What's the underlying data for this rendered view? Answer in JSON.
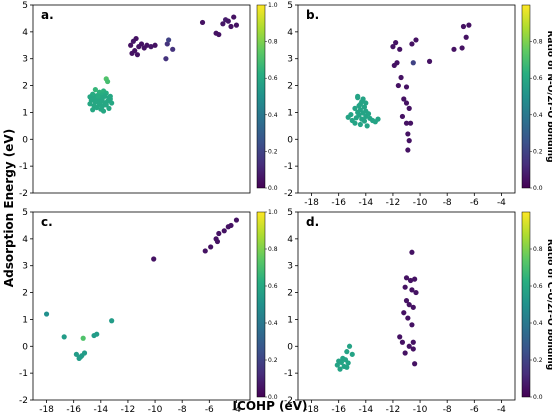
{
  "figure": {
    "ylabel": "Adsorption Energy (eV)",
    "xlabel": "ICOHP (eV)"
  },
  "chart_data": [
    {
      "type": "scatter",
      "panel_label": "a.",
      "xlim": [
        -19,
        -3
      ],
      "ylim": [
        -2,
        5
      ],
      "xticks": [],
      "yticks": [
        "-2",
        "-1",
        "0",
        "1",
        "2",
        "3",
        "4",
        "5"
      ],
      "colorbar": {
        "label": "",
        "ticks": [
          "0.0",
          "0.2",
          "0.4",
          "0.6",
          "0.8",
          "1.0"
        ],
        "cmap": "viridis",
        "range": [
          0,
          1
        ]
      },
      "points": [
        {
          "x": -13.6,
          "y": 2.25,
          "c": 0.72
        },
        {
          "x": -13.5,
          "y": 2.15,
          "c": 0.7
        },
        {
          "x": -14.4,
          "y": 1.85,
          "c": 0.66
        },
        {
          "x": -13.8,
          "y": 1.8,
          "c": 0.64
        },
        {
          "x": -14.1,
          "y": 1.75,
          "c": 0.64
        },
        {
          "x": -13.6,
          "y": 1.72,
          "c": 0.62
        },
        {
          "x": -14.6,
          "y": 1.68,
          "c": 0.62
        },
        {
          "x": -13.9,
          "y": 1.65,
          "c": 0.62
        },
        {
          "x": -14.3,
          "y": 1.62,
          "c": 0.6
        },
        {
          "x": -13.7,
          "y": 1.6,
          "c": 0.6
        },
        {
          "x": -14.8,
          "y": 1.58,
          "c": 0.6
        },
        {
          "x": -13.4,
          "y": 1.55,
          "c": 0.6
        },
        {
          "x": -14.0,
          "y": 1.55,
          "c": 0.6
        },
        {
          "x": -14.5,
          "y": 1.52,
          "c": 0.6
        },
        {
          "x": -13.3,
          "y": 1.5,
          "c": 0.6
        },
        {
          "x": -13.9,
          "y": 1.48,
          "c": 0.6
        },
        {
          "x": -14.2,
          "y": 1.45,
          "c": 0.6
        },
        {
          "x": -14.7,
          "y": 1.45,
          "c": 0.6
        },
        {
          "x": -13.5,
          "y": 1.42,
          "c": 0.6
        },
        {
          "x": -14.0,
          "y": 1.4,
          "c": 0.6
        },
        {
          "x": -14.4,
          "y": 1.38,
          "c": 0.6
        },
        {
          "x": -13.7,
          "y": 1.35,
          "c": 0.6
        },
        {
          "x": -14.8,
          "y": 1.32,
          "c": 0.6
        },
        {
          "x": -13.2,
          "y": 1.35,
          "c": 0.6
        },
        {
          "x": -14.1,
          "y": 1.3,
          "c": 0.6
        },
        {
          "x": -13.6,
          "y": 1.28,
          "c": 0.6
        },
        {
          "x": -14.5,
          "y": 1.25,
          "c": 0.6
        },
        {
          "x": -13.9,
          "y": 1.22,
          "c": 0.6
        },
        {
          "x": -14.3,
          "y": 1.18,
          "c": 0.6
        },
        {
          "x": -13.4,
          "y": 1.15,
          "c": 0.6
        },
        {
          "x": -14.0,
          "y": 1.12,
          "c": 0.6
        },
        {
          "x": -14.6,
          "y": 1.1,
          "c": 0.6
        },
        {
          "x": -13.8,
          "y": 1.05,
          "c": 0.6
        },
        {
          "x": -14.2,
          "y": 1.6,
          "c": 0.62
        },
        {
          "x": -13.3,
          "y": 1.6,
          "c": 0.6
        },
        {
          "x": -11.8,
          "y": 3.5,
          "c": 0.05
        },
        {
          "x": -11.6,
          "y": 3.65,
          "c": 0.06
        },
        {
          "x": -11.4,
          "y": 3.75,
          "c": 0.05
        },
        {
          "x": -11.2,
          "y": 3.45,
          "c": 0.05
        },
        {
          "x": -11.5,
          "y": 3.3,
          "c": 0.05
        },
        {
          "x": -11.0,
          "y": 3.55,
          "c": 0.05
        },
        {
          "x": -10.8,
          "y": 3.4,
          "c": 0.05
        },
        {
          "x": -10.6,
          "y": 3.5,
          "c": 0.05
        },
        {
          "x": -10.3,
          "y": 3.45,
          "c": 0.06
        },
        {
          "x": -10.0,
          "y": 3.5,
          "c": 0.05
        },
        {
          "x": -11.7,
          "y": 3.2,
          "c": 0.05
        },
        {
          "x": -11.3,
          "y": 3.15,
          "c": 0.05
        },
        {
          "x": -9.1,
          "y": 3.55,
          "c": 0.15
        },
        {
          "x": -9.0,
          "y": 3.7,
          "c": 0.2
        },
        {
          "x": -8.7,
          "y": 3.35,
          "c": 0.15
        },
        {
          "x": -9.2,
          "y": 3.0,
          "c": 0.15
        },
        {
          "x": -6.5,
          "y": 4.35,
          "c": 0.05
        },
        {
          "x": -5.5,
          "y": 3.95,
          "c": 0.05
        },
        {
          "x": -5.3,
          "y": 3.9,
          "c": 0.05
        },
        {
          "x": -5.0,
          "y": 4.3,
          "c": 0.06
        },
        {
          "x": -4.8,
          "y": 4.45,
          "c": 0.08
        },
        {
          "x": -4.6,
          "y": 4.4,
          "c": 0.06
        },
        {
          "x": -4.4,
          "y": 4.2,
          "c": 0.05
        },
        {
          "x": -4.2,
          "y": 4.55,
          "c": 0.05
        },
        {
          "x": -4.0,
          "y": 4.25,
          "c": 0.05
        }
      ]
    },
    {
      "type": "scatter",
      "panel_label": "b.",
      "xlim": [
        -19,
        -3
      ],
      "ylim": [
        -2,
        5
      ],
      "xticks": [
        "-18",
        "-16",
        "-14",
        "-12",
        "-10",
        "-8",
        "-6",
        "-4"
      ],
      "yticks": [
        "-2",
        "-1",
        "0",
        "1",
        "2",
        "3",
        "4",
        "5"
      ],
      "colorbar": {
        "label": "Ratio of N-O/Zr-O bonding",
        "ticks": [
          "0.0",
          "0.2",
          "0.4",
          "0.6",
          "0.8"
        ],
        "cmap": "viridis",
        "range": [
          0,
          1
        ]
      },
      "points": [
        {
          "x": -14.6,
          "y": 1.55,
          "c": 0.58
        },
        {
          "x": -14.3,
          "y": 1.4,
          "c": 0.58
        },
        {
          "x": -14.0,
          "y": 1.35,
          "c": 0.58
        },
        {
          "x": -14.5,
          "y": 1.25,
          "c": 0.58
        },
        {
          "x": -14.1,
          "y": 1.2,
          "c": 0.58
        },
        {
          "x": -14.8,
          "y": 1.15,
          "c": 0.58
        },
        {
          "x": -14.4,
          "y": 1.1,
          "c": 0.58
        },
        {
          "x": -14.0,
          "y": 1.05,
          "c": 0.58
        },
        {
          "x": -14.6,
          "y": 1.0,
          "c": 0.58
        },
        {
          "x": -14.2,
          "y": 0.98,
          "c": 0.58
        },
        {
          "x": -13.8,
          "y": 0.95,
          "c": 0.58
        },
        {
          "x": -15.1,
          "y": 0.92,
          "c": 0.58
        },
        {
          "x": -14.5,
          "y": 0.9,
          "c": 0.58
        },
        {
          "x": -14.0,
          "y": 0.85,
          "c": 0.58
        },
        {
          "x": -15.3,
          "y": 0.82,
          "c": 0.58
        },
        {
          "x": -14.7,
          "y": 0.8,
          "c": 0.58
        },
        {
          "x": -13.7,
          "y": 0.78,
          "c": 0.58
        },
        {
          "x": -14.3,
          "y": 0.75,
          "c": 0.58
        },
        {
          "x": -15.0,
          "y": 0.7,
          "c": 0.58
        },
        {
          "x": -14.1,
          "y": 0.68,
          "c": 0.58
        },
        {
          "x": -13.5,
          "y": 0.7,
          "c": 0.58
        },
        {
          "x": -14.8,
          "y": 0.6,
          "c": 0.58
        },
        {
          "x": -14.4,
          "y": 0.55,
          "c": 0.58
        },
        {
          "x": -13.9,
          "y": 0.5,
          "c": 0.58
        },
        {
          "x": -13.3,
          "y": 0.65,
          "c": 0.58
        },
        {
          "x": -13.1,
          "y": 0.75,
          "c": 0.58
        },
        {
          "x": -14.2,
          "y": 1.5,
          "c": 0.58
        },
        {
          "x": -14.4,
          "y": 1.3,
          "c": 0.58
        },
        {
          "x": -14.6,
          "y": 1.6,
          "c": 0.58
        },
        {
          "x": -12.0,
          "y": 3.45,
          "c": 0.05
        },
        {
          "x": -11.8,
          "y": 3.6,
          "c": 0.05
        },
        {
          "x": -11.5,
          "y": 3.35,
          "c": 0.05
        },
        {
          "x": -11.7,
          "y": 2.85,
          "c": 0.05
        },
        {
          "x": -11.9,
          "y": 2.75,
          "c": 0.05
        },
        {
          "x": -11.4,
          "y": 2.3,
          "c": 0.05
        },
        {
          "x": -11.6,
          "y": 2.0,
          "c": 0.05
        },
        {
          "x": -11.0,
          "y": 1.95,
          "c": 0.05
        },
        {
          "x": -11.2,
          "y": 1.5,
          "c": 0.05
        },
        {
          "x": -11.0,
          "y": 1.35,
          "c": 0.05
        },
        {
          "x": -10.8,
          "y": 1.15,
          "c": 0.05
        },
        {
          "x": -11.3,
          "y": 0.85,
          "c": 0.05
        },
        {
          "x": -11.0,
          "y": 0.6,
          "c": 0.05
        },
        {
          "x": -10.7,
          "y": 0.6,
          "c": 0.05
        },
        {
          "x": -10.9,
          "y": 0.2,
          "c": 0.05
        },
        {
          "x": -10.8,
          "y": -0.05,
          "c": 0.05
        },
        {
          "x": -10.9,
          "y": -0.4,
          "c": 0.05
        },
        {
          "x": -10.6,
          "y": 3.55,
          "c": 0.05
        },
        {
          "x": -10.3,
          "y": 3.7,
          "c": 0.05
        },
        {
          "x": -10.5,
          "y": 2.85,
          "c": 0.2
        },
        {
          "x": -9.3,
          "y": 2.9,
          "c": 0.05
        },
        {
          "x": -7.5,
          "y": 3.35,
          "c": 0.05
        },
        {
          "x": -6.9,
          "y": 3.4,
          "c": 0.05
        },
        {
          "x": -6.8,
          "y": 4.2,
          "c": 0.05
        },
        {
          "x": -6.6,
          "y": 3.8,
          "c": 0.05
        },
        {
          "x": -6.4,
          "y": 4.25,
          "c": 0.05
        }
      ]
    },
    {
      "type": "scatter",
      "panel_label": "c.",
      "xlim": [
        -19,
        -3
      ],
      "ylim": [
        -2,
        5
      ],
      "xticks": [
        "-18",
        "-16",
        "-14",
        "-12",
        "-10",
        "-8",
        "-6",
        "-4"
      ],
      "yticks": [
        "-2",
        "-1",
        "0",
        "1",
        "2",
        "3",
        "4",
        "5"
      ],
      "colorbar": {
        "label": "",
        "ticks": [
          "0.0",
          "0.2",
          "0.4",
          "0.6",
          "0.8",
          "1.0"
        ],
        "cmap": "viridis",
        "range": [
          0,
          1
        ]
      },
      "points": [
        {
          "x": -18.0,
          "y": 1.2,
          "c": 0.5
        },
        {
          "x": -16.7,
          "y": 0.35,
          "c": 0.55
        },
        {
          "x": -15.8,
          "y": -0.3,
          "c": 0.55
        },
        {
          "x": -15.6,
          "y": -0.45,
          "c": 0.55
        },
        {
          "x": -15.4,
          "y": -0.35,
          "c": 0.55
        },
        {
          "x": -15.2,
          "y": -0.25,
          "c": 0.55
        },
        {
          "x": -15.5,
          "y": -0.4,
          "c": 0.55
        },
        {
          "x": -15.3,
          "y": 0.3,
          "c": 0.72
        },
        {
          "x": -14.5,
          "y": 0.4,
          "c": 0.55
        },
        {
          "x": -14.3,
          "y": 0.45,
          "c": 0.55
        },
        {
          "x": -13.2,
          "y": 0.95,
          "c": 0.55
        },
        {
          "x": -10.1,
          "y": 3.25,
          "c": 0.05
        },
        {
          "x": -6.3,
          "y": 3.55,
          "c": 0.05
        },
        {
          "x": -5.9,
          "y": 3.7,
          "c": 0.05
        },
        {
          "x": -5.5,
          "y": 4.0,
          "c": 0.05
        },
        {
          "x": -5.3,
          "y": 4.2,
          "c": 0.05
        },
        {
          "x": -5.4,
          "y": 3.9,
          "c": 0.05
        },
        {
          "x": -4.9,
          "y": 4.3,
          "c": 0.05
        },
        {
          "x": -4.6,
          "y": 4.45,
          "c": 0.05
        },
        {
          "x": -4.4,
          "y": 4.5,
          "c": 0.05
        },
        {
          "x": -4.0,
          "y": 4.7,
          "c": 0.05
        }
      ]
    },
    {
      "type": "scatter",
      "panel_label": "d.",
      "xlim": [
        -19,
        -3
      ],
      "ylim": [
        -2,
        5
      ],
      "xticks": [
        "-18",
        "-16",
        "-14",
        "-12",
        "-10",
        "-8",
        "-6",
        "-4"
      ],
      "yticks": [
        "-2",
        "-1",
        "0",
        "1",
        "2",
        "3",
        "4",
        "5"
      ],
      "colorbar": {
        "label": "Ratio of C-O/Zr-O bonding",
        "ticks": [
          "0.0",
          "0.2",
          "0.4",
          "0.6",
          "0.8"
        ],
        "cmap": "viridis",
        "range": [
          0,
          1
        ]
      },
      "points": [
        {
          "x": -15.2,
          "y": 0.0,
          "c": 0.58
        },
        {
          "x": -15.4,
          "y": -0.2,
          "c": 0.58
        },
        {
          "x": -15.0,
          "y": -0.3,
          "c": 0.58
        },
        {
          "x": -15.7,
          "y": -0.45,
          "c": 0.58
        },
        {
          "x": -15.5,
          "y": -0.5,
          "c": 0.58
        },
        {
          "x": -16.0,
          "y": -0.55,
          "c": 0.58
        },
        {
          "x": -15.8,
          "y": -0.6,
          "c": 0.58
        },
        {
          "x": -15.3,
          "y": -0.62,
          "c": 0.58
        },
        {
          "x": -16.1,
          "y": -0.7,
          "c": 0.58
        },
        {
          "x": -15.6,
          "y": -0.75,
          "c": 0.58
        },
        {
          "x": -15.9,
          "y": -0.85,
          "c": 0.58
        },
        {
          "x": -15.4,
          "y": -0.78,
          "c": 0.58
        },
        {
          "x": -10.6,
          "y": 3.5,
          "c": 0.05
        },
        {
          "x": -11.0,
          "y": 2.55,
          "c": 0.05
        },
        {
          "x": -10.7,
          "y": 2.45,
          "c": 0.05
        },
        {
          "x": -10.4,
          "y": 2.5,
          "c": 0.05
        },
        {
          "x": -11.1,
          "y": 2.2,
          "c": 0.05
        },
        {
          "x": -10.6,
          "y": 2.1,
          "c": 0.05
        },
        {
          "x": -10.3,
          "y": 2.0,
          "c": 0.05
        },
        {
          "x": -11.0,
          "y": 1.7,
          "c": 0.05
        },
        {
          "x": -10.8,
          "y": 1.55,
          "c": 0.05
        },
        {
          "x": -10.5,
          "y": 1.45,
          "c": 0.05
        },
        {
          "x": -11.2,
          "y": 1.25,
          "c": 0.05
        },
        {
          "x": -10.9,
          "y": 1.05,
          "c": 0.05
        },
        {
          "x": -10.6,
          "y": 0.8,
          "c": 0.05
        },
        {
          "x": -11.5,
          "y": 0.35,
          "c": 0.05
        },
        {
          "x": -11.3,
          "y": 0.15,
          "c": 0.05
        },
        {
          "x": -10.8,
          "y": 0.0,
          "c": 0.05
        },
        {
          "x": -10.5,
          "y": -0.1,
          "c": 0.05
        },
        {
          "x": -11.1,
          "y": -0.25,
          "c": 0.05
        },
        {
          "x": -10.4,
          "y": -0.65,
          "c": 0.05
        },
        {
          "x": -10.5,
          "y": 0.15,
          "c": 0.05
        }
      ]
    }
  ]
}
